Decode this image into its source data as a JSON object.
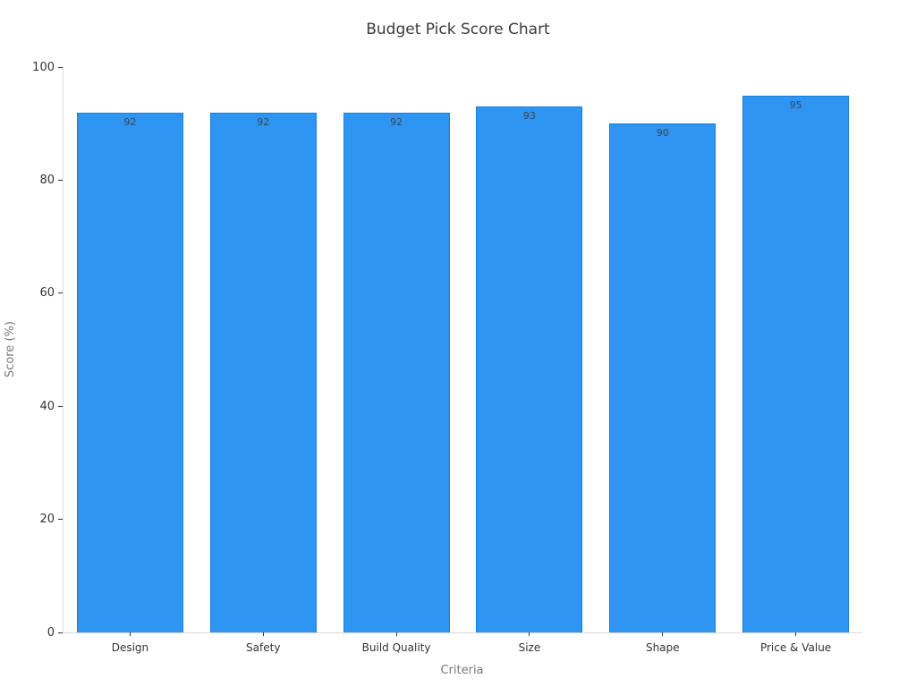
{
  "chart_data": {
    "type": "bar",
    "title": "Budget Pick Score Chart",
    "xlabel": "Criteria",
    "ylabel": "Score (%)",
    "categories": [
      "Design",
      "Safety",
      "Build Quality",
      "Size",
      "Shape",
      "Price & Value"
    ],
    "values": [
      92,
      92,
      92,
      93,
      90,
      95
    ],
    "ylim": [
      0,
      100
    ],
    "yticks": [
      0,
      20,
      40,
      60,
      80,
      100
    ],
    "grid": false,
    "legend": "none",
    "value_labels_position": "inside-top",
    "colors": {
      "background": "#FFFFFF",
      "bar_fill": "#2E95F3",
      "bar_border": "#1B7FD8",
      "value_label": "#3A4750",
      "axis_line": "#D9D9D9",
      "tick_mark": "#333333",
      "tick_label": "#333333",
      "axis_title": "#7A7A7A",
      "chart_title": "#3B3B3B"
    }
  }
}
